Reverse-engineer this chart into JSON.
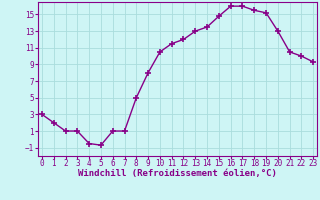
{
  "x": [
    0,
    1,
    2,
    3,
    4,
    5,
    6,
    7,
    8,
    9,
    10,
    11,
    12,
    13,
    14,
    15,
    16,
    17,
    18,
    19,
    20,
    21,
    22,
    23
  ],
  "y": [
    3,
    2,
    1,
    1,
    -0.5,
    -0.7,
    1,
    1,
    5,
    8,
    10.5,
    11.5,
    12,
    13,
    13.5,
    14.8,
    16,
    16,
    15.5,
    15.2,
    13,
    10.5,
    10,
    9.3
  ],
  "line_color": "#880088",
  "marker": "+",
  "markersize": 4,
  "markeredgewidth": 1.2,
  "linewidth": 1.0,
  "bg_color": "#cef5f5",
  "grid_color": "#aadddd",
  "xlabel": "Windchill (Refroidissement éolien,°C)",
  "xlabel_color": "#880088",
  "xlabel_fontsize": 6.5,
  "tick_color": "#880088",
  "tick_fontsize": 5.5,
  "yticks": [
    -1,
    1,
    3,
    5,
    7,
    9,
    11,
    13,
    15
  ],
  "xticks": [
    0,
    1,
    2,
    3,
    4,
    5,
    6,
    7,
    8,
    9,
    10,
    11,
    12,
    13,
    14,
    15,
    16,
    17,
    18,
    19,
    20,
    21,
    22,
    23
  ],
  "ylim": [
    -2.0,
    16.5
  ],
  "xlim": [
    -0.3,
    23.3
  ]
}
